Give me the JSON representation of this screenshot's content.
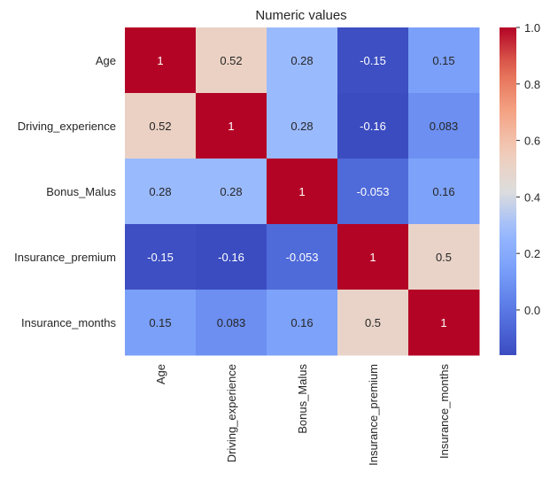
{
  "chart_data": {
    "type": "heatmap",
    "title": "Numeric values",
    "xlabel": "",
    "ylabel": "",
    "rows": [
      "Age",
      "Driving_experience",
      "Bonus_Malus",
      "Insurance_premium",
      "Insurance_months"
    ],
    "columns": [
      "Age",
      "Driving_experience",
      "Bonus_Malus",
      "Insurance_premium",
      "Insurance_months"
    ],
    "values": [
      [
        1,
        0.52,
        0.28,
        -0.15,
        0.15
      ],
      [
        0.52,
        1,
        0.28,
        -0.16,
        0.083
      ],
      [
        0.28,
        0.28,
        1,
        -0.053,
        0.16
      ],
      [
        -0.15,
        -0.16,
        -0.053,
        1,
        0.5
      ],
      [
        0.15,
        0.083,
        0.16,
        0.5,
        1
      ]
    ],
    "cell_labels": [
      [
        "1",
        "0.52",
        "0.28",
        "-0.15",
        "0.15"
      ],
      [
        "0.52",
        "1",
        "0.28",
        "-0.16",
        "0.083"
      ],
      [
        "0.28",
        "0.28",
        "1",
        "-0.053",
        "0.16"
      ],
      [
        "-0.15",
        "-0.16",
        "-0.053",
        "1",
        "0.5"
      ],
      [
        "0.15",
        "0.083",
        "0.16",
        "0.5",
        "1"
      ]
    ],
    "colormap": "coolwarm",
    "colorbar": {
      "range": [
        -0.16,
        1.0
      ],
      "ticks": [
        0.0,
        0.2,
        0.4,
        0.6,
        0.8,
        1.0
      ],
      "tick_labels": [
        "0.0",
        "0.2",
        "0.4",
        "0.6",
        "0.8",
        "1.0"
      ]
    },
    "grid": false,
    "legend": "colorbar-right"
  }
}
